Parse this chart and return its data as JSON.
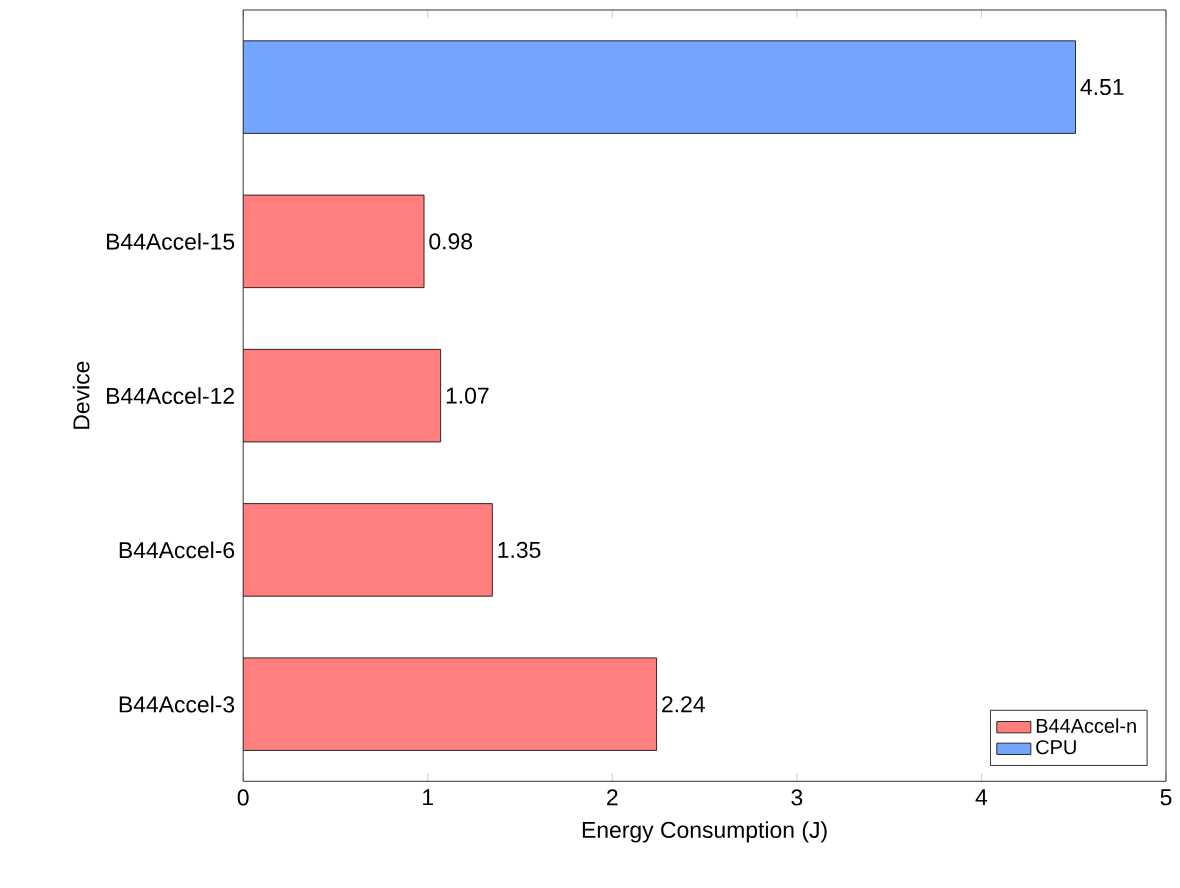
{
  "chart_data": {
    "type": "bar",
    "orientation": "horizontal",
    "xlabel": "Energy Consumption (J)",
    "ylabel": "Device",
    "categories": [
      null,
      "B44Accel-15",
      "B44Accel-12",
      "B44Accel-6",
      "B44Accel-3"
    ],
    "series": [
      {
        "name": "B44Accel-n",
        "color": "#ff7f7f",
        "values": [
          null,
          0.98,
          1.07,
          1.35,
          2.24
        ]
      },
      {
        "name": "CPU",
        "color": "#73a5ff",
        "values": [
          4.51,
          null,
          null,
          null,
          null
        ]
      }
    ],
    "xlim": [
      0,
      5
    ],
    "xticks": [
      0,
      1,
      2,
      3,
      4,
      5
    ],
    "data_labels": true,
    "legend": "bottom right",
    "grid": false
  }
}
